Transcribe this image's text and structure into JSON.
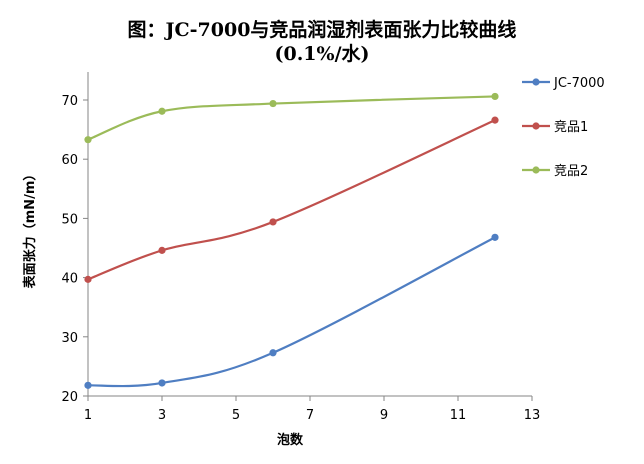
{
  "chart_data": {
    "type": "line",
    "title": "图：JC-7000与竞品润湿剂表面张力比较曲线",
    "subtitle": "(0.1%/水)",
    "xlabel": "泡数",
    "ylabel": "表面张力（mN/m）",
    "xlim": [
      1,
      13
    ],
    "ylim": [
      20,
      75
    ],
    "xticks": [
      1,
      3,
      5,
      7,
      9,
      11,
      13
    ],
    "yticks": [
      20,
      30,
      40,
      50,
      60,
      70
    ],
    "grid": false,
    "legend_position": "right",
    "series": [
      {
        "name": "JC-7000",
        "color": "#4F7EC2",
        "x": [
          1,
          3,
          6,
          12
        ],
        "y": [
          21.8,
          22.2,
          27.3,
          46.8
        ]
      },
      {
        "name": "竞品1",
        "color": "#C0504D",
        "x": [
          1,
          3,
          6,
          12
        ],
        "y": [
          39.7,
          44.6,
          49.4,
          66.6
        ]
      },
      {
        "name": "竞品2",
        "color": "#9BBB59",
        "x": [
          1,
          3,
          6,
          12
        ],
        "y": [
          63.3,
          68.1,
          69.4,
          70.6
        ]
      }
    ]
  }
}
